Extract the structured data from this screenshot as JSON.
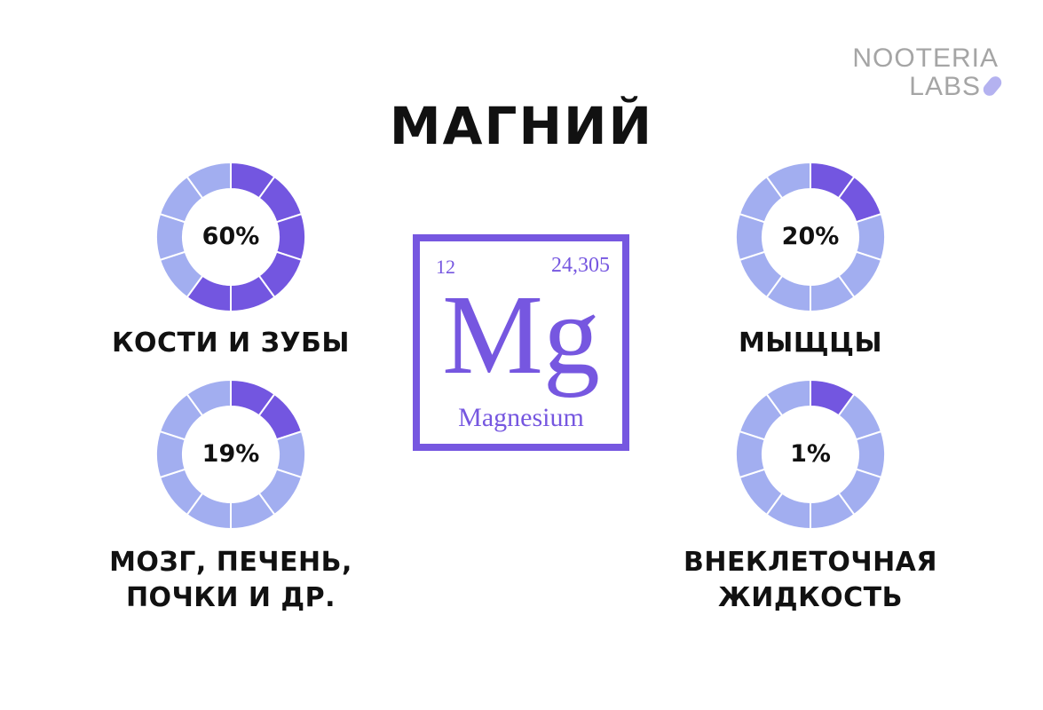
{
  "logo": {
    "line1": "NOOTERIA",
    "line2": "LABS",
    "icon": "pill-icon"
  },
  "title": "МАГНИЙ",
  "colors": {
    "filled": "#7356e0",
    "empty": "#a2aef0",
    "border": "#7657e0"
  },
  "element": {
    "number": "12",
    "mass": "24,305",
    "symbol": "Mg",
    "name": "Magnesium"
  },
  "donuts": [
    {
      "percent_label": "60%",
      "value": 60,
      "label_lines": [
        "КОСТИ И ЗУБЫ"
      ]
    },
    {
      "percent_label": "20%",
      "value": 20,
      "label_lines": [
        "МЫЩЦЫ"
      ]
    },
    {
      "percent_label": "19%",
      "value": 19,
      "label_lines": [
        "МОЗГ, ПЕЧЕНЬ,",
        "ПОЧКИ И ДР."
      ]
    },
    {
      "percent_label": "1%",
      "value": 1,
      "label_lines": [
        "ВНЕКЛЕТОЧНАЯ",
        "ЖИДКОСТЬ"
      ]
    }
  ]
}
